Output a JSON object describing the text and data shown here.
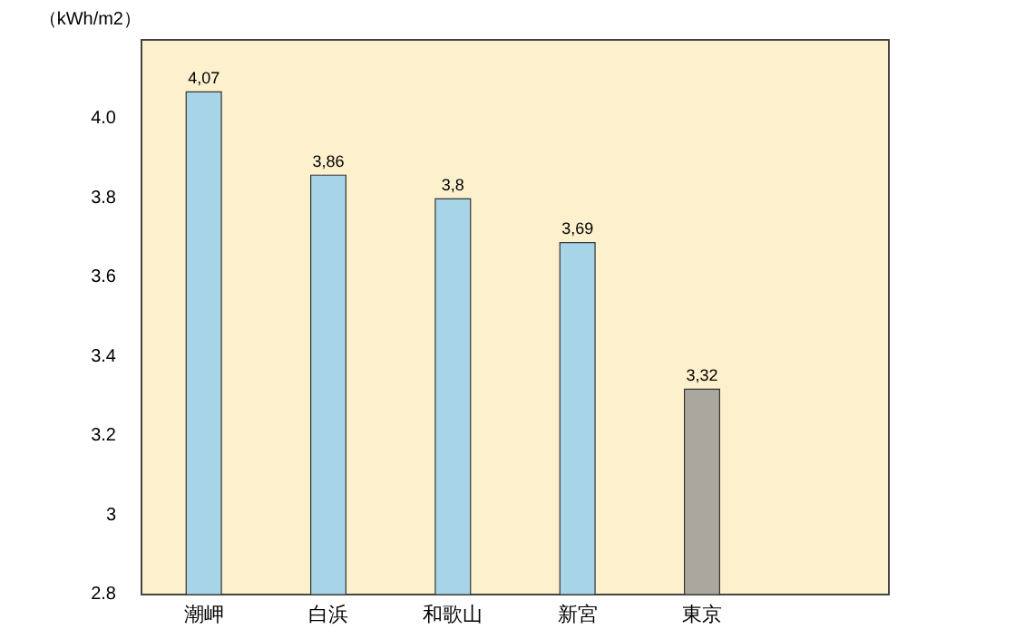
{
  "chart_data": {
    "type": "bar",
    "ylabel": "（kWh/m2）",
    "categories": [
      "潮岬",
      "白浜",
      "和歌山",
      "新宮",
      "東京",
      null
    ],
    "values": [
      4.07,
      3.86,
      3.8,
      3.69,
      3.32,
      null
    ],
    "colors": [
      "#a8d4e8",
      "#a8d4e8",
      "#a8d4e8",
      "#a8d4e8",
      "#aaa79f",
      null
    ],
    "value_labels": [
      "4,07",
      "3,86",
      "3,8",
      "3,69",
      "3,32",
      null
    ],
    "ylim": [
      2.8,
      4.2
    ],
    "yticks": [
      2.8,
      {
        "value": 3,
        "label": "3"
      },
      3.2,
      3.4,
      3.6,
      3.8,
      {
        "value": 4,
        "label": "4.0"
      }
    ],
    "grid": false
  }
}
